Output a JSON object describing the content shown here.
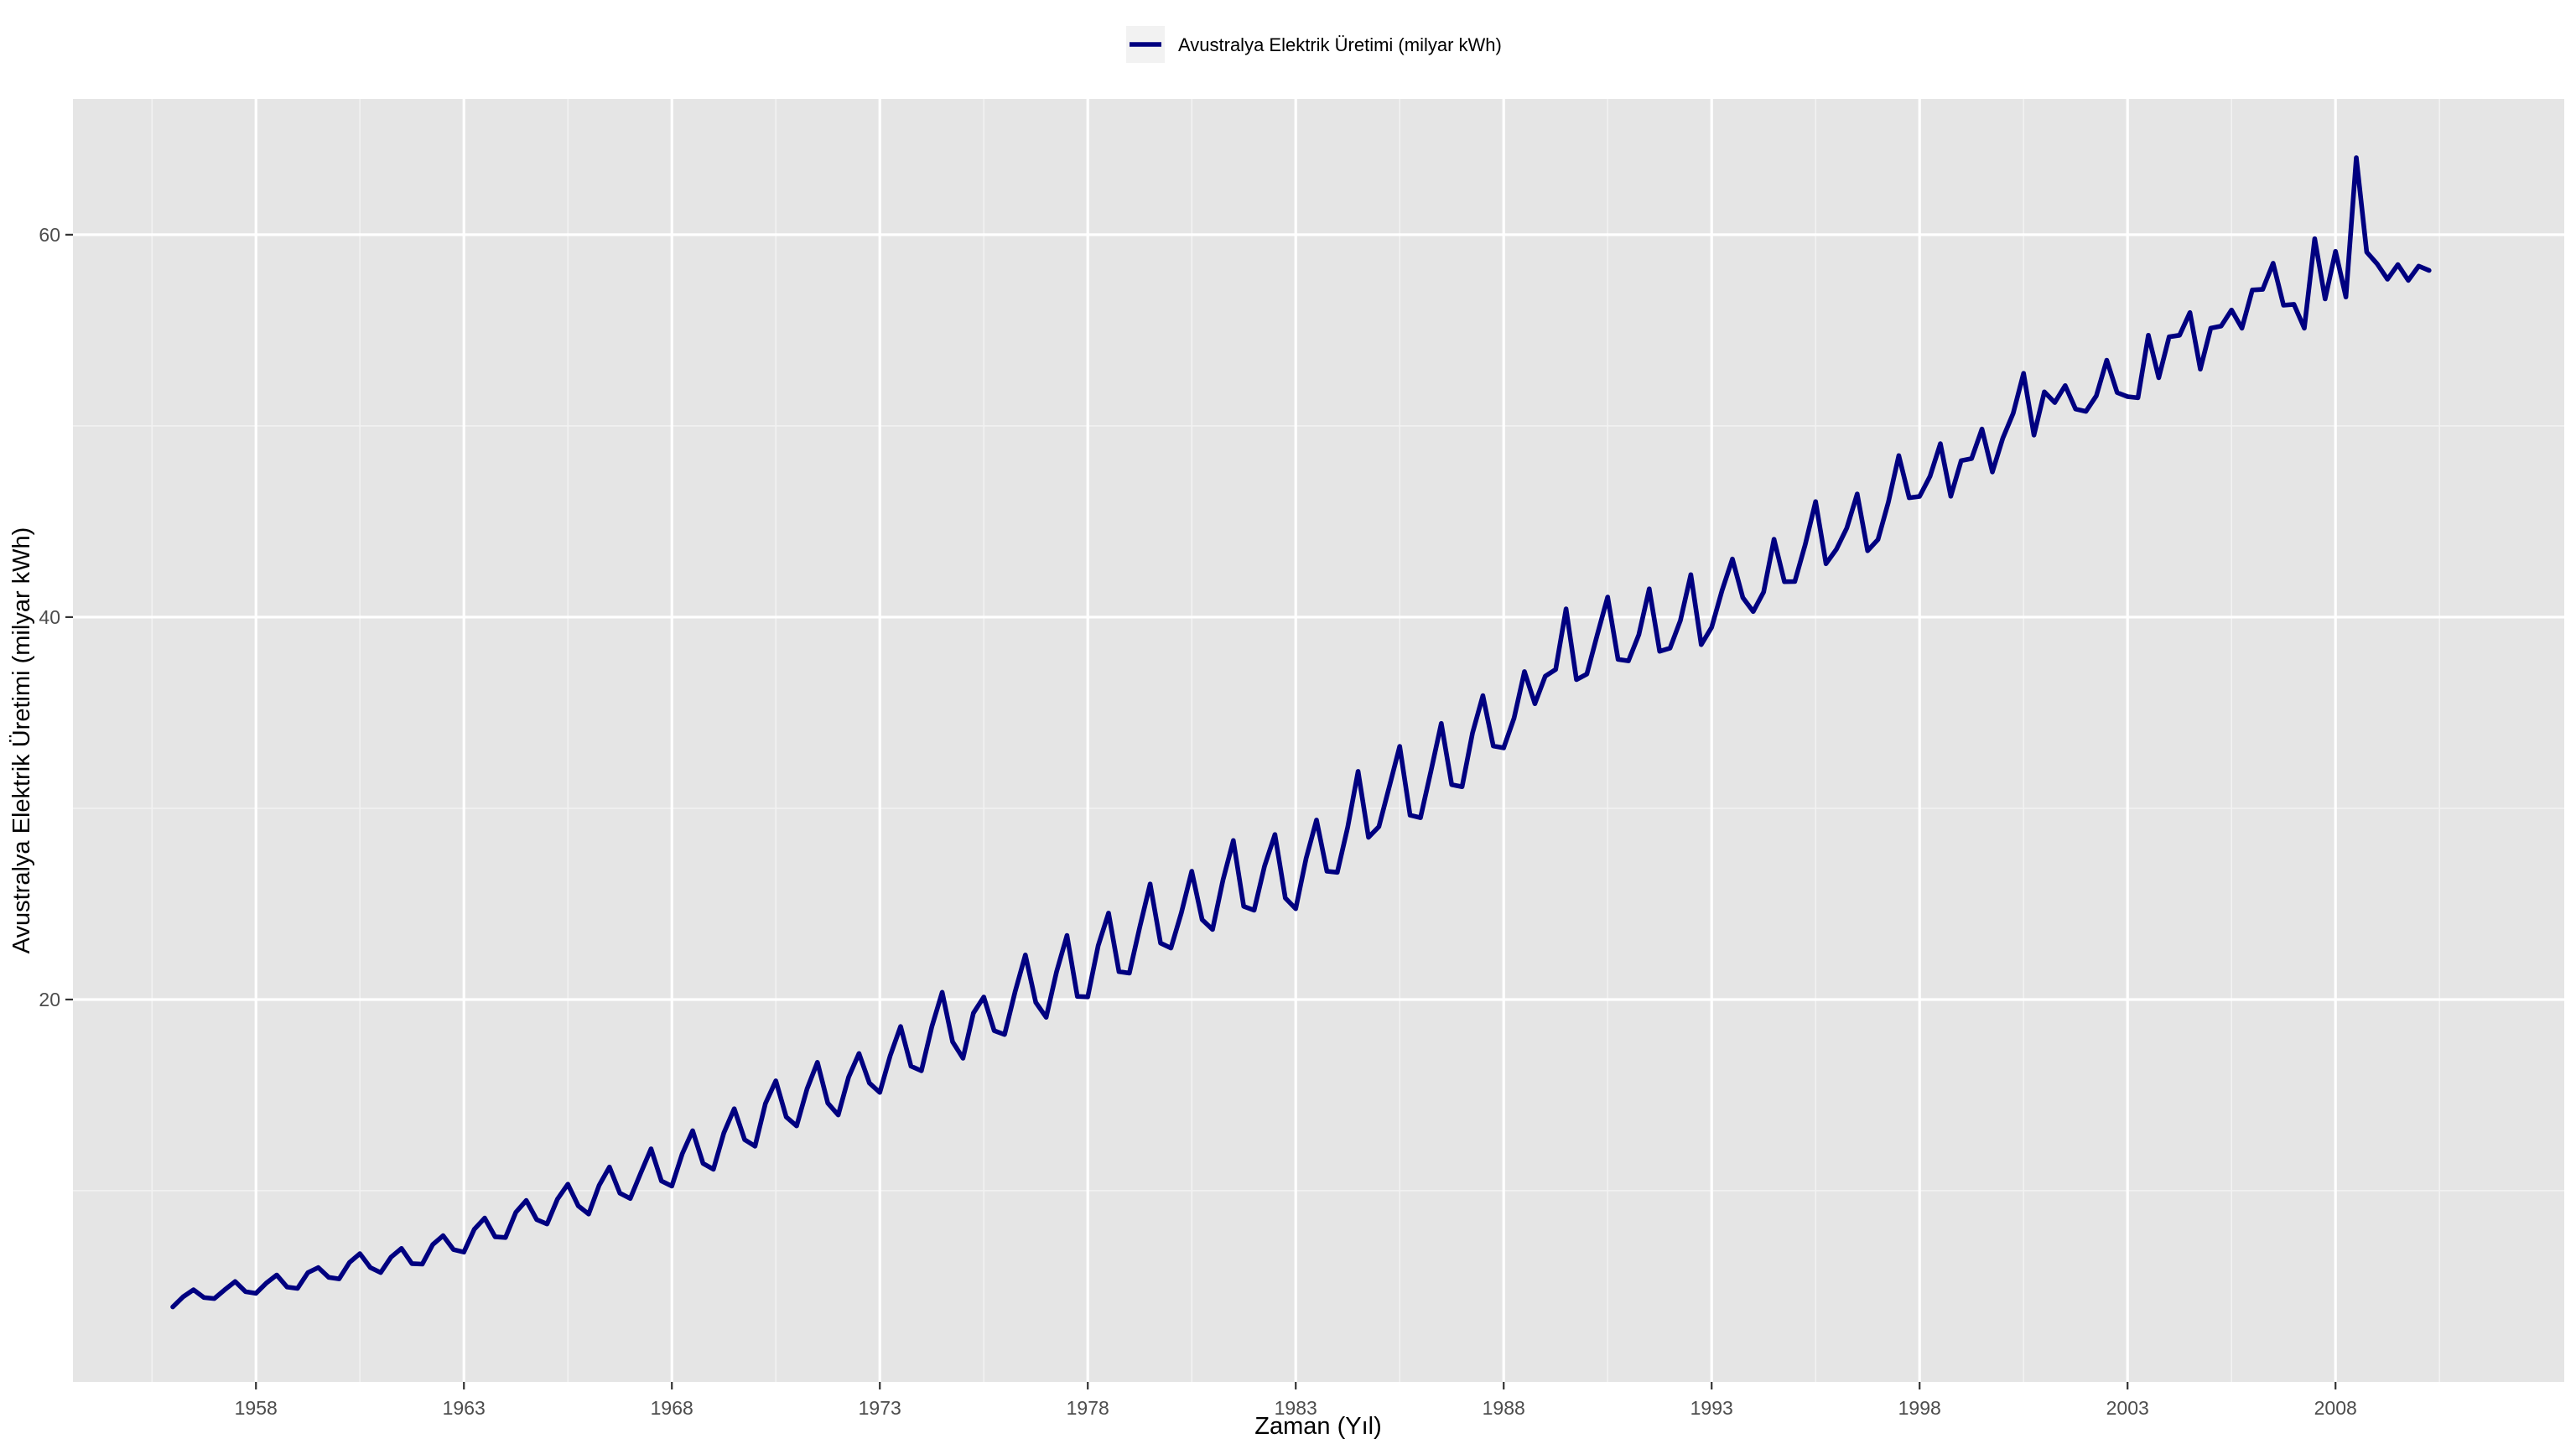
{
  "chart_data": {
    "type": "line",
    "title": "",
    "xlabel": "Zaman (Yıl)",
    "ylabel": "Avustralya Elektrik Üretimi (milyar kWh)",
    "xlim": [
      1953.6,
      2013.5
    ],
    "ylim": [
      0,
      67.1
    ],
    "x_ticks": [
      1958,
      1963,
      1968,
      1973,
      1978,
      1983,
      1988,
      1993,
      1998,
      2003,
      2008
    ],
    "x_tick_labels": [
      "1958",
      "1963",
      "1968",
      "1973",
      "1978",
      "1983",
      "1988",
      "1993",
      "1998",
      "2003",
      "2008"
    ],
    "y_ticks": [
      20,
      40,
      60
    ],
    "y_tick_labels": [
      "20",
      "40",
      "60"
    ],
    "grid": true,
    "legend_position": "top",
    "series": [
      {
        "name": "Avustralya Elektrik Üretimi (milyar kWh)",
        "color": "#000080",
        "x": [
          1956.0,
          1956.25,
          1956.5,
          1956.75,
          1957.0,
          1957.25,
          1957.5,
          1957.75,
          1958.0,
          1958.25,
          1958.5,
          1958.75,
          1959.0,
          1959.25,
          1959.5,
          1959.75,
          1960.0,
          1960.25,
          1960.5,
          1960.75,
          1961.0,
          1961.25,
          1961.5,
          1961.75,
          1962.0,
          1962.25,
          1962.5,
          1962.75,
          1963.0,
          1963.25,
          1963.5,
          1963.75,
          1964.0,
          1964.25,
          1964.5,
          1964.75,
          1965.0,
          1965.25,
          1965.5,
          1965.75,
          1966.0,
          1966.25,
          1966.5,
          1966.75,
          1967.0,
          1967.25,
          1967.5,
          1967.75,
          1968.0,
          1968.25,
          1968.5,
          1968.75,
          1969.0,
          1969.25,
          1969.5,
          1969.75,
          1970.0,
          1970.25,
          1970.5,
          1970.75,
          1971.0,
          1971.25,
          1971.5,
          1971.75,
          1972.0,
          1972.25,
          1972.5,
          1972.75,
          1973.0,
          1973.25,
          1973.5,
          1973.75,
          1974.0,
          1974.25,
          1974.5,
          1974.75,
          1975.0,
          1975.25,
          1975.5,
          1975.75,
          1976.0,
          1976.25,
          1976.5,
          1976.75,
          1977.0,
          1977.25,
          1977.5,
          1977.75,
          1978.0,
          1978.25,
          1978.5,
          1978.75,
          1979.0,
          1979.25,
          1979.5,
          1979.75,
          1980.0,
          1980.25,
          1980.5,
          1980.75,
          1981.0,
          1981.25,
          1981.5,
          1981.75,
          1982.0,
          1982.25,
          1982.5,
          1982.75,
          1983.0,
          1983.25,
          1983.5,
          1983.75,
          1984.0,
          1984.25,
          1984.5,
          1984.75,
          1985.0,
          1985.25,
          1985.5,
          1985.75,
          1986.0,
          1986.25,
          1986.5,
          1986.75,
          1987.0,
          1987.25,
          1987.5,
          1987.75,
          1988.0,
          1988.25,
          1988.5,
          1988.75,
          1989.0,
          1989.25,
          1989.5,
          1989.75,
          1990.0,
          1990.25,
          1990.5,
          1990.75,
          1991.0,
          1991.25,
          1991.5,
          1991.75,
          1992.0,
          1992.25,
          1992.5,
          1992.75,
          1993.0,
          1993.25,
          1993.5,
          1993.75,
          1994.0,
          1994.25,
          1994.5,
          1994.75,
          1995.0,
          1995.25,
          1995.5,
          1995.75,
          1996.0,
          1996.25,
          1996.5,
          1996.75,
          1997.0,
          1997.25,
          1997.5,
          1997.75,
          1998.0,
          1998.25,
          1998.5,
          1998.75,
          1999.0,
          1999.25,
          1999.5,
          1999.75,
          2000.0,
          2000.25,
          2000.5,
          2000.75,
          2001.0,
          2001.25,
          2001.5,
          2001.75,
          2002.0,
          2002.25,
          2002.5,
          2002.75,
          2003.0,
          2003.25,
          2003.5,
          2003.75,
          2004.0,
          2004.25,
          2004.5,
          2004.75,
          2005.0,
          2005.25,
          2005.5,
          2005.75,
          2006.0,
          2006.25,
          2006.5,
          2006.75,
          2007.0,
          2007.25,
          2007.5,
          2007.75,
          2008.0,
          2008.25,
          2008.5,
          2008.75,
          2009.0,
          2009.25,
          2009.5,
          2009.75,
          2010.0,
          2010.25
        ],
        "values": [
          3.92,
          4.45,
          4.82,
          4.41,
          4.36,
          4.82,
          5.25,
          4.72,
          4.63,
          5.17,
          5.59,
          4.96,
          4.89,
          5.72,
          5.98,
          5.47,
          5.39,
          6.25,
          6.71,
          5.98,
          5.72,
          6.53,
          6.98,
          6.19,
          6.16,
          7.18,
          7.65,
          6.92,
          6.79,
          7.98,
          8.57,
          7.59,
          7.55,
          8.87,
          9.49,
          8.49,
          8.26,
          9.56,
          10.34,
          9.21,
          8.78,
          10.27,
          11.24,
          9.87,
          9.59,
          10.91,
          12.19,
          10.51,
          10.24,
          11.93,
          13.14,
          11.43,
          11.12,
          13.02,
          14.29,
          12.67,
          12.33,
          14.56,
          15.75,
          13.86,
          13.39,
          15.32,
          16.72,
          14.58,
          13.96,
          15.94,
          17.18,
          15.63,
          15.14,
          17.06,
          18.59,
          16.51,
          16.27,
          18.57,
          20.38,
          17.79,
          16.93,
          19.29,
          20.13,
          18.37,
          18.17,
          20.38,
          22.33,
          19.85,
          19.07,
          21.45,
          23.35,
          20.16,
          20.14,
          22.81,
          24.52,
          21.46,
          21.38,
          23.78,
          26.04,
          22.95,
          22.69,
          24.53,
          26.71,
          24.18,
          23.66,
          26.24,
          28.32,
          24.87,
          24.67,
          26.97,
          28.63,
          25.31,
          24.75,
          27.38,
          29.39,
          26.71,
          26.65,
          29.01,
          31.93,
          28.48,
          29.04,
          31.13,
          33.24,
          29.64,
          29.51,
          31.93,
          34.44,
          31.24,
          31.13,
          33.93,
          35.89,
          33.26,
          33.16,
          34.72,
          37.15,
          35.47,
          36.91,
          37.26,
          40.43,
          36.73,
          37.02,
          39.07,
          41.05,
          37.79,
          37.71,
          39.08,
          41.48,
          38.21,
          38.38,
          39.83,
          42.22,
          38.56,
          39.46,
          41.39,
          43.04,
          41.02,
          40.29,
          41.31,
          44.07,
          41.85,
          41.86,
          43.79,
          46.04,
          42.79,
          43.55,
          44.66,
          46.44,
          43.47,
          44.06,
          46.02,
          48.45,
          46.24,
          46.31,
          47.36,
          49.07,
          46.32,
          48.18,
          48.29,
          49.84,
          47.59,
          49.35,
          50.66,
          52.75,
          49.52,
          51.78,
          51.22,
          52.11,
          50.88,
          50.76,
          51.58,
          53.44,
          51.74,
          51.53,
          51.47,
          54.74,
          52.52,
          54.66,
          54.74,
          55.93,
          52.97,
          55.11,
          55.22,
          56.06,
          55.11,
          57.11,
          57.14,
          58.51,
          56.31,
          56.36,
          55.11,
          59.79,
          56.64,
          59.13,
          56.74,
          64.03,
          59.09,
          58.48,
          57.67,
          58.44,
          57.61,
          58.36,
          58.13
        ]
      }
    ]
  }
}
